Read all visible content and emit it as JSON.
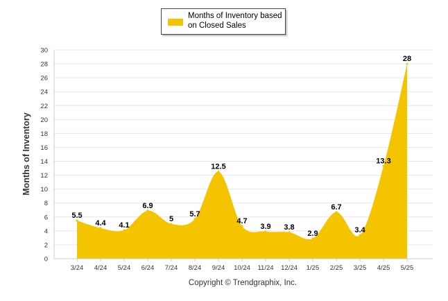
{
  "legend": {
    "label": "Months of Inventory based on Closed Sales"
  },
  "copyright": "Copyright © Trendgraphix, Inc.",
  "colors": {
    "series": "#f5c400",
    "grid": "#e6e6e6",
    "axis": "#cccccc"
  },
  "chart_data": {
    "type": "area",
    "categories": [
      "3/24",
      "4/24",
      "5/24",
      "6/24",
      "7/24",
      "8/24",
      "9/24",
      "10/24",
      "11/24",
      "12/24",
      "1/25",
      "2/25",
      "3/25",
      "4/25",
      "5/25"
    ],
    "series": [
      {
        "name": "Months of Inventory based on Closed Sales",
        "values": [
          5.5,
          4.4,
          4.1,
          6.9,
          5,
          5.7,
          12.5,
          4.7,
          3.9,
          3.8,
          2.9,
          6.7,
          3.4,
          13.3,
          28
        ]
      }
    ],
    "data_labels": [
      "5.5",
      "4.4",
      "4.1",
      "6.9",
      "5",
      "5.7",
      "12.5",
      "4.7",
      "3.9",
      "3.8",
      "2.9",
      "6.7",
      "3.4",
      "13.3",
      "28"
    ],
    "ylabel": "Months of Inventory",
    "ylim": [
      0,
      30
    ],
    "yticks": [
      "0",
      "2",
      "4",
      "6",
      "8",
      "10",
      "12",
      "14",
      "16",
      "18",
      "20",
      "22",
      "24",
      "26",
      "28",
      "30"
    ],
    "grid": true,
    "legend_position": "top-center"
  }
}
